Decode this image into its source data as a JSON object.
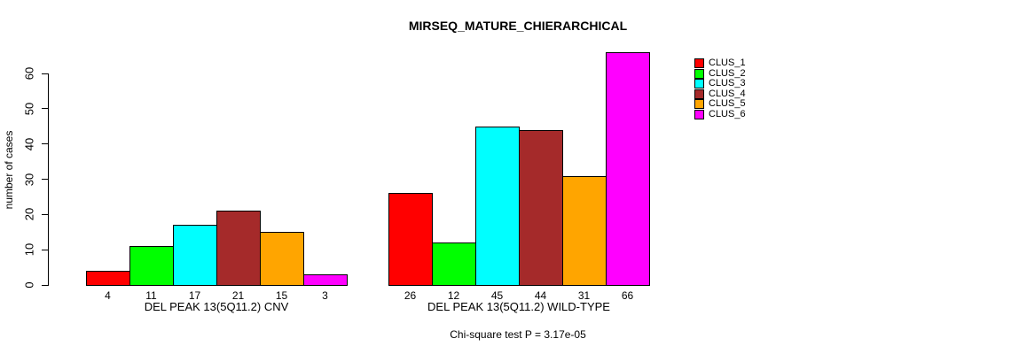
{
  "figure": {
    "title": "MIRSEQ_MATURE_CHIERARCHICAL",
    "subtitle": "Chi-square test P = 3.17e-05",
    "ylabel": "number of cases"
  },
  "chart_data": {
    "type": "bar",
    "title": "MIRSEQ_MATURE_CHIERARCHICAL",
    "xlabel": "",
    "ylabel": "number of cases",
    "ylim": [
      0,
      66
    ],
    "yticks": [
      0,
      10,
      20,
      30,
      40,
      50,
      60
    ],
    "grid": false,
    "legend_position": "top-right",
    "bar_value_labels": true,
    "categories": [
      "DEL PEAK 13(5Q11.2) CNV",
      "DEL PEAK 13(5Q11.2) WILD-TYPE"
    ],
    "series": [
      {
        "name": "CLUS_1",
        "color": "#ff0000",
        "values": [
          4,
          26
        ]
      },
      {
        "name": "CLUS_2",
        "color": "#00ff00",
        "values": [
          11,
          12
        ]
      },
      {
        "name": "CLUS_3",
        "color": "#00ffff",
        "values": [
          17,
          45
        ]
      },
      {
        "name": "CLUS_4",
        "color": "#a52a2a",
        "values": [
          21,
          44
        ]
      },
      {
        "name": "CLUS_5",
        "color": "#ffa500",
        "values": [
          15,
          31
        ]
      },
      {
        "name": "CLUS_6",
        "color": "#ff00ff",
        "values": [
          3,
          66
        ]
      }
    ],
    "annotation": "Chi-square test P = 3.17e-05"
  }
}
